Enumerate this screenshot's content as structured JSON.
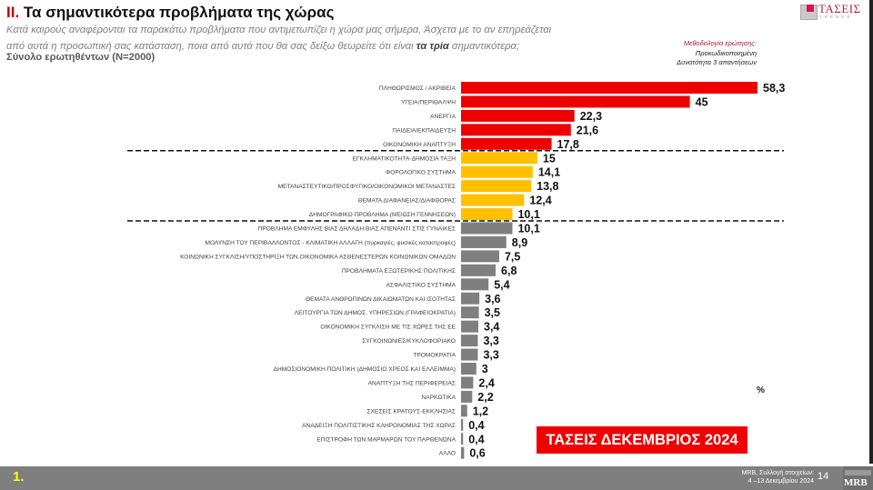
{
  "header": {
    "title_number": "II.",
    "title_text": "Τα σημαντικότερα προβλήματα της χώρας",
    "question_line1": "Κατά καιρούς αναφέρονται τα παρακάτω προβλήματα που αντιμετωπίζει η χώρα μας σήμερα, Άσχετα με το αν επηρεάζεται",
    "question_line2_pre": "από αυτά η προσωπική σας κατάσταση, ποια από αυτά που θα σας δείξω θεωρείτε ότι είναι ",
    "question_line2_bold": "τα τρία",
    "question_line2_post": " σημαντικότερα;",
    "sample": "Σύνολο ερωτηθέντων (N=2000)"
  },
  "methodology": {
    "title": "Μεθοδολογία ερώτησης:",
    "line1": "Προκωδικοποιημένη",
    "line2": "Δυνατότητα 3 απαντήσεων"
  },
  "logo": {
    "name": "ΤΑΣΕΙΣ",
    "tagline": "TRENDS",
    "accent": "#e0134c"
  },
  "badge": {
    "label": "ΤΑΣΕΙΣ ΔΕΚΕΜΒΡΙΟΣ 2024",
    "color": "#ee0000"
  },
  "unit_label": "%",
  "footer": {
    "slide_number": "1.",
    "source_line1": "MRB, Συλλογή στοιχείων:",
    "source_line2": "4 –13 Δεκεμβρίου 2024",
    "page": "14",
    "logo": "MRB"
  },
  "colors": {
    "top": "#ee0000",
    "mid": "#ffc000",
    "low": "#7f7f7f"
  },
  "chart_data": {
    "type": "bar",
    "orientation": "horizontal",
    "title": "Τα σημαντικότερα προβλήματα της χώρας",
    "xlabel": "",
    "ylabel": "",
    "unit": "%",
    "grid": false,
    "xlim": [
      0,
      60
    ],
    "groups": [
      "top",
      "mid",
      "low"
    ],
    "categories": [
      "ΠΛΗΘΩΡΙΣΜΟΣ / ΑΚΡΙΒΕΙΑ",
      "ΥΓΕΙΑ/ΠΕΡΙΘΑΛΨΗ",
      "ΑΝΕΡΓΙΑ",
      "ΠΑΙΔΕΙΑ/ΕΚΠΑΙΔΕΥΣΗ",
      "ΟΙΚΟΝΟΜΙΚΗ ΑΝΑΠΤΥΞΗ",
      "ΕΓΚΛΗΜΑΤΙΚΟΤΗΤΑ-ΔΗΜΟΣΙΑ ΤΑΞΗ",
      "ΦΟΡΟΛΟΓΙΚΟ ΣΥΣΤΗΜΑ",
      "ΜΕΤΑΝΑΣΤΕΥΤΙΚΟ/ΠΡΟΣΦΥΓΙΚΟ/ΟΙΚΟΝΟΜΙΚΟΙ ΜΕΤΑΝΑΣΤΕΣ",
      "ΘΕΜΑΤΑ ΔΙΑΦΑΝΕΙΑΣ/ΔΙΑΦΘΟΡΑΣ",
      "ΔΗΜΟΓΡΑΦΙΚΟ ΠΡΟΒΛΗΜΑ (ΜΕΙΩΣΗ ΓΕΝΝΗΣΕΩΝ)",
      "ΠΡΟΒΛΗΜΑ ΕΜΦΥΛΗΣ ΒΙΑΣ ΔΗΛΑΔΗ ΒΙΑΣ ΑΠΕΝΑΝΤΙ ΣΤΙΣ ΓΥΝΑΙΚΕΣ",
      "ΜΟΛΥΝΣΗ ΤΟΥ ΠΕΡΙΒΑΛΛΟΝΤΟΣ - ΚΛΙΜΑΤΙΚΗ ΑΛΛΑΓΗ (πυρκαγιές, φυσικές καταστροφές)",
      "ΚΟΙΝΩΝΙΚΗ ΣΥΓΚΛΙΣΗ/ΥΠΟΣΤΗΡΙΞΗ ΤΩΝ ΟΙΚΟΝΟΜΙΚΑ ΑΣΘΕΝΕΣΤΕΡΩΝ ΚΟΙΝΩΝΙΚΩΝ ΟΜΑΔΩΝ",
      "ΠΡΟΒΛΗΜΑΤΑ ΕΞΩΤΕΡΙΚΗΣ ΠΟΛΙΤΙΚΗΣ",
      "ΑΣΦΑΛΙΣΤΙΚΟ ΣΥΣΤΗΜΑ",
      "ΘΕΜΑΤΑ ΑΝΘΡΩΠΙΝΩΝ ΔΙΚΑΙΩΜΑΤΩΝ ΚΑΙ ΙΣΟΤΗΤΑΣ",
      "ΛΕΙΤΟΥΡΓΙΑ ΤΩΝ ΔΗΜΟΣ. ΥΠΗΡΕΣΙΩΝ (ΓΡΑΦΕΙΟΚΡΑΤΙΑ)",
      "ΟΙΚΟΝΟΜΙΚΗ ΣΥΓΚΛΙΣΗ ΜΕ ΤΙΣ ΧΩΡΕΣ ΤΗΣ ΕΕ",
      "ΣΥΓΚΟΙΝΩΝΙΕΣ/ΚΥΚΛΟΦΟΡΙΑΚΟ",
      "ΤΡΟΜΟΚΡΑΤΙΑ",
      "ΔΗΜΟΣΙΟΝΟΜΙΚΗ ΠΟΛΙΤΙΚΗ (ΔΗΜΟΣΙΟ ΧΡΕΟΣ ΚΑΙ ΕΛΛΕΙΜΜΑ)",
      "ΑΝΑΠΤΥΞΗ ΤΗΣ ΠΕΡΙΦΕΡΕΙΑΣ",
      "ΝΑΡΚΩΤΙΚΑ",
      "ΣΧΕΣΕΙΣ ΚΡΑΤΟΥΣ-ΕΚΚΛΗΣΙΑΣ",
      "ΑΝΑΔΕΙΞΗ ΠΟΛΙΤΙΣΤΙΚΗΣ ΚΛΗΡΟΝΟΜΙΑΣ ΤΗΣ ΧΩΡΑΣ",
      "ΕΠΙΣΤΡΟΦΗ ΤΩΝ ΜΑΡΜΑΡΩΝ ΤΟΥ ΠΑΡΘΕΝΩΝΑ",
      "ΑΛΛΟ"
    ],
    "values": [
      58.3,
      45,
      22.3,
      21.6,
      17.8,
      15,
      14.1,
      13.8,
      12.4,
      10.1,
      10.1,
      8.9,
      7.5,
      6.8,
      5.4,
      3.6,
      3.5,
      3.4,
      3.3,
      3.3,
      3,
      2.4,
      2.2,
      1.2,
      0.4,
      0.4,
      0.6
    ],
    "labels": [
      "58,3",
      "45",
      "22,3",
      "21,6",
      "17,8",
      "15",
      "14,1",
      "13,8",
      "12,4",
      "10,1",
      "10,1",
      "8,9",
      "7,5",
      "6,8",
      "5,4",
      "3,6",
      "3,5",
      "3,4",
      "3,3",
      "3,3",
      "3",
      "2,4",
      "2,2",
      "1,2",
      "0,4",
      "0,4",
      "0,6"
    ],
    "group_of": [
      "top",
      "top",
      "top",
      "top",
      "top",
      "mid",
      "mid",
      "mid",
      "mid",
      "mid",
      "low",
      "low",
      "low",
      "low",
      "low",
      "low",
      "low",
      "low",
      "low",
      "low",
      "low",
      "low",
      "low",
      "low",
      "low",
      "low",
      "low"
    ],
    "separators_after": [
      4,
      9
    ]
  }
}
